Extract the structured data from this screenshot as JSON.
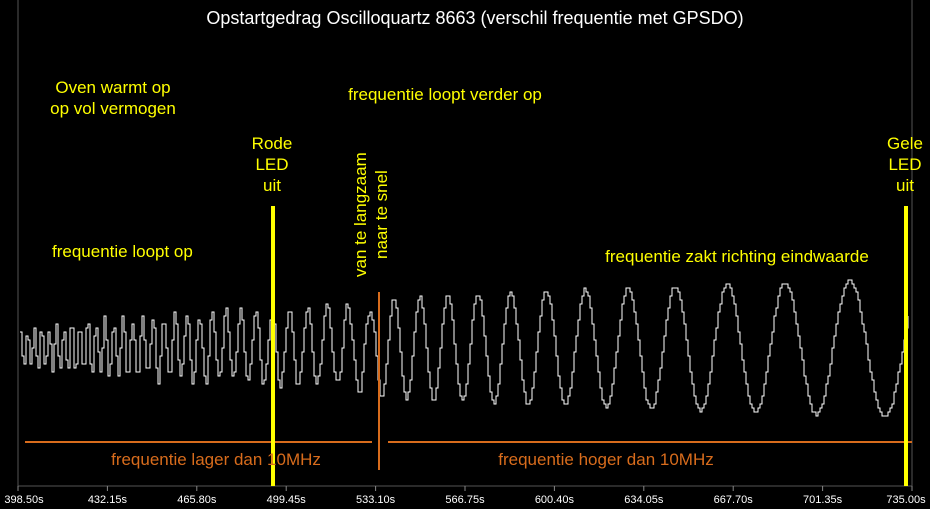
{
  "chart_data": {
    "type": "line",
    "title": "Opstartgedrag Oscilloquartz 8663 (verschil frequentie met GPSDO)",
    "xlabel": "",
    "ylabel": "",
    "xlim": [
      398.5,
      735.0
    ],
    "x_ticks": [
      "398.50s",
      "432.15s",
      "465.80s",
      "499.45s",
      "533.10s",
      "566.75s",
      "600.40s",
      "634.05s",
      "667.70s",
      "701.35s",
      "735.00s"
    ],
    "grid": false,
    "annotations": {
      "oven_line1": "Oven warmt op",
      "oven_line2": "op vol vermogen",
      "rode_1": "Rode",
      "rode_2": "LED",
      "rode_3": "uit",
      "freq_up": "frequentie loopt op",
      "freq_further": "frequentie loopt verder op",
      "slow_to_fast_1": "van te langzaam",
      "slow_to_fast_2": "naar te snel",
      "freq_down": "frequentie zakt richting eindwaarde",
      "gele_1": "Gele",
      "gele_2": "LED",
      "gele_3": "uit",
      "lower": "frequentie lager dan 10MHz",
      "higher": "frequentie hoger dan 10MHz"
    },
    "markers": [
      {
        "label": "Rode LED uit",
        "x": 499.45,
        "color": "#ffff00"
      },
      {
        "label": "Gele LED uit",
        "x": 733.5,
        "color": "#ffff00"
      }
    ],
    "zero_crossing_x": 533.1,
    "waveform": {
      "description_free_values": true,
      "period_start_s": 3.2,
      "period_end_s": 34.0,
      "amp_start": 0.25,
      "amp_end": 1.0,
      "center": 0,
      "min": -1.0,
      "max": 1.0
    },
    "colors": {
      "background": "#000000",
      "trace": "#ffffff",
      "annotation": "#ffff00",
      "axis_line": "#d86c1c"
    }
  }
}
